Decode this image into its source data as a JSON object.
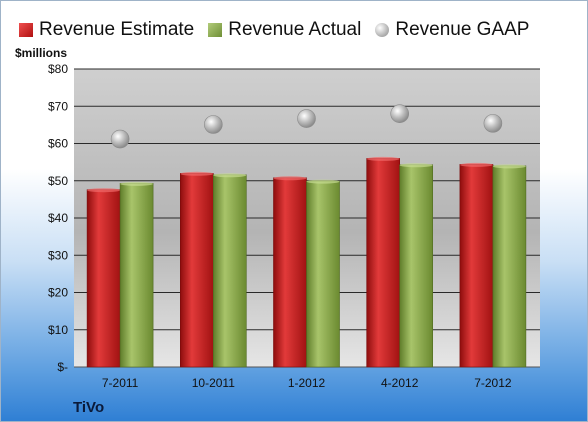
{
  "chart_data": {
    "type": "bar",
    "title": "",
    "unit_label": "$millions",
    "company": "TiVo",
    "categories": [
      "7-2011",
      "10-2011",
      "1-2012",
      "4-2012",
      "7-2012"
    ],
    "series": [
      {
        "name": "Revenue Estimate",
        "type": "bar",
        "color": "#c81e1e",
        "values": [
          47.6,
          52.0,
          50.8,
          56.0,
          54.4
        ]
      },
      {
        "name": "Revenue Actual",
        "type": "bar",
        "color": "#8aa84a",
        "values": [
          49.3,
          51.6,
          49.9,
          54.3,
          54.0
        ]
      },
      {
        "name": "Revenue GAAP",
        "type": "scatter",
        "color": "#b8b8b8",
        "values": [
          61.2,
          65.1,
          66.7,
          68.0,
          65.4
        ]
      }
    ],
    "y_ticks": [
      "$-",
      "$10",
      "$20",
      "$30",
      "$40",
      "$50",
      "$60",
      "$70",
      "$80"
    ],
    "ylim": [
      0,
      80
    ],
    "grid": true,
    "legend_position": "top"
  }
}
